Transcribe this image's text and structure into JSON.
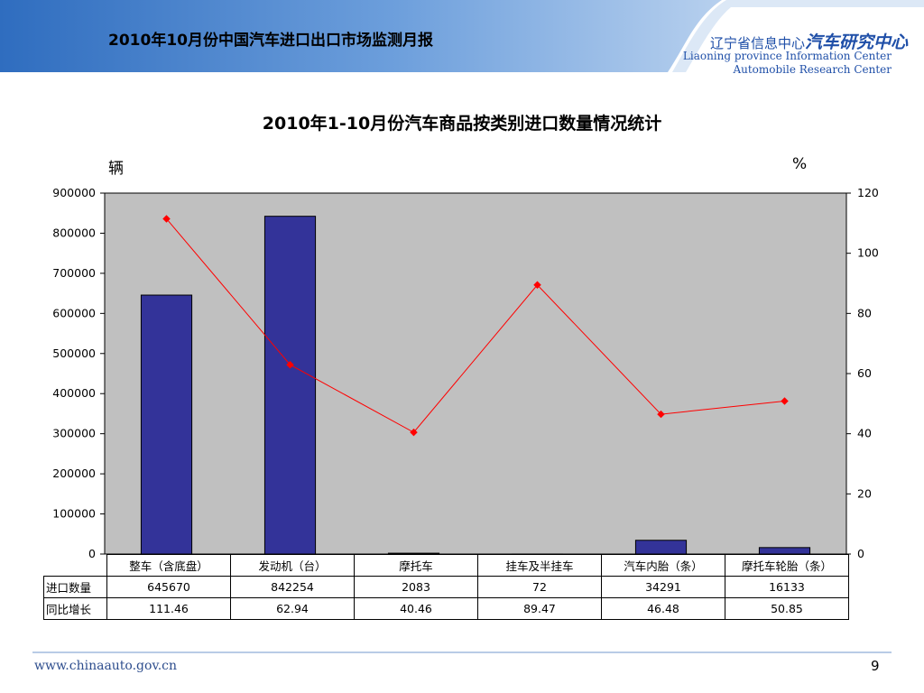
{
  "header": {
    "title": "2010年10月份中国汽车进口出口市场监测月报",
    "logo_cn_small": "辽宁省信息中心",
    "logo_cn_big": "汽车研究中心",
    "logo_en_1": "Liaoning province Information Center",
    "logo_en_2": "Automobile Research Center"
  },
  "chart_data": {
    "type": "bar",
    "title": "2010年1-10月份汽车商品按类别进口数量情况统计",
    "ylabel": "辆",
    "y2label": "%",
    "categories": [
      "整车（含底盘）",
      "发动机（台）",
      "摩托车",
      "挂车及半挂车",
      "汽车内胎（条）",
      "摩托车轮胎（条）"
    ],
    "series": [
      {
        "name": "进口数量",
        "type": "bar",
        "axis": "left",
        "values": [
          645670,
          842254,
          2083,
          72,
          34291,
          16133
        ]
      },
      {
        "name": "同比增长",
        "type": "line",
        "axis": "right",
        "values": [
          111.46,
          62.94,
          40.46,
          89.47,
          46.48,
          50.85
        ]
      }
    ],
    "ylim": [
      0,
      900000
    ],
    "y2lim": [
      0,
      120
    ],
    "yticks": [
      "0",
      "100000",
      "200000",
      "300000",
      "400000",
      "500000",
      "600000",
      "700000",
      "800000",
      "900000"
    ],
    "y2ticks": [
      "0",
      "20",
      "40",
      "60",
      "80",
      "100",
      "120"
    ],
    "table_values": {
      "row1": [
        "645670",
        "842254",
        "2083",
        "72",
        "34291",
        "16133"
      ],
      "row2": [
        "111.46",
        "62.94",
        "40.46",
        "89.47",
        "46.48",
        "50.85"
      ]
    },
    "grid": false,
    "legend": "data-table",
    "colors": {
      "bar": "#333399",
      "line": "#ff0000",
      "plot_bg": "#c0c0c0"
    }
  },
  "footer": {
    "url": "www.chinaauto.gov.cn",
    "page_number": "9"
  }
}
